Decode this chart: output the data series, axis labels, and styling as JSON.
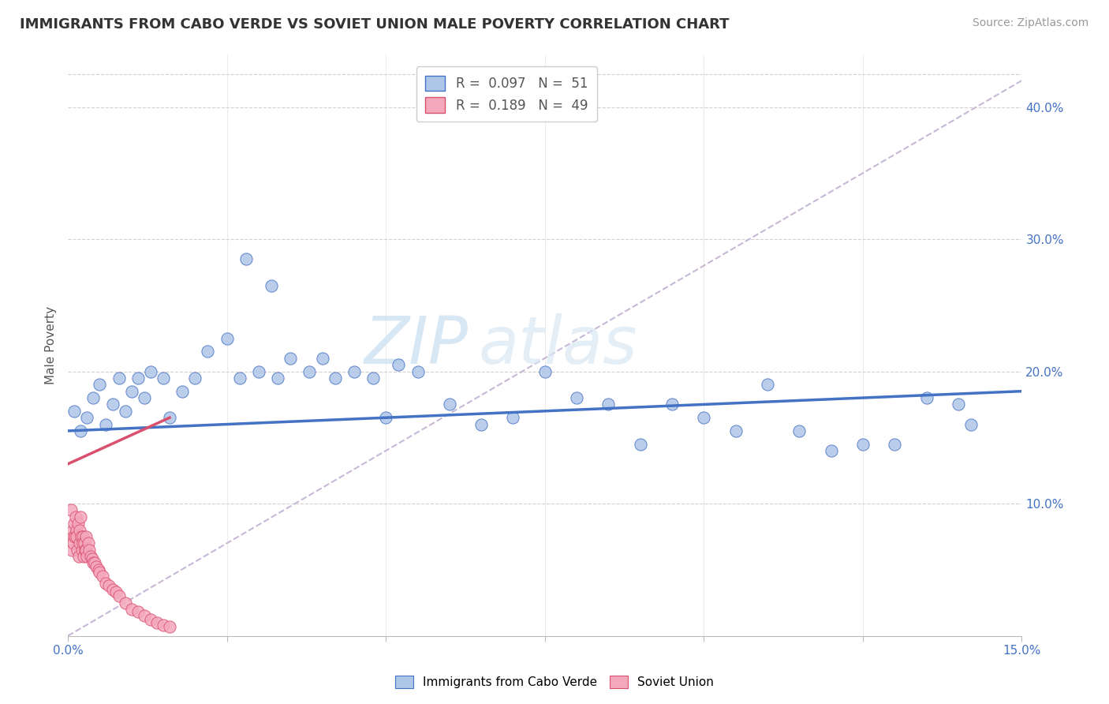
{
  "title": "IMMIGRANTS FROM CABO VERDE VS SOVIET UNION MALE POVERTY CORRELATION CHART",
  "source": "Source: ZipAtlas.com",
  "ylabel": "Male Poverty",
  "xlim": [
    0.0,
    0.15
  ],
  "ylim": [
    0.0,
    0.44
  ],
  "xtick_positions": [
    0.0,
    0.025,
    0.05,
    0.075,
    0.1,
    0.125,
    0.15
  ],
  "xticklabels": [
    "0.0%",
    "",
    "",
    "",
    "",
    "",
    "15.0%"
  ],
  "yticks_right": [
    0.1,
    0.2,
    0.3,
    0.4
  ],
  "yticklabels_right": [
    "10.0%",
    "20.0%",
    "30.0%",
    "40.0%"
  ],
  "cabo_verde_R": 0.097,
  "cabo_verde_N": 51,
  "soviet_union_R": 0.189,
  "soviet_union_N": 49,
  "cabo_verde_color": "#aec6e8",
  "soviet_union_color": "#f4a8bc",
  "cabo_verde_line_color": "#4472c4",
  "soviet_union_line_color": "#d94f6e",
  "legend_label_1": "Immigrants from Cabo Verde",
  "legend_label_2": "Soviet Union",
  "watermark_zip": "ZIP",
  "watermark_atlas": "atlas",
  "diag_line_color": "#c8b8d8",
  "background_color": "#ffffff",
  "grid_color": "#d0d0d0",
  "cabo_verde_x": [
    0.001,
    0.002,
    0.003,
    0.004,
    0.005,
    0.006,
    0.007,
    0.008,
    0.009,
    0.01,
    0.011,
    0.012,
    0.013,
    0.015,
    0.016,
    0.018,
    0.02,
    0.022,
    0.025,
    0.027,
    0.028,
    0.03,
    0.032,
    0.033,
    0.035,
    0.038,
    0.04,
    0.042,
    0.045,
    0.048,
    0.05,
    0.052,
    0.055,
    0.06,
    0.065,
    0.07,
    0.075,
    0.08,
    0.085,
    0.09,
    0.095,
    0.1,
    0.105,
    0.11,
    0.115,
    0.12,
    0.125,
    0.13,
    0.135,
    0.14,
    0.142
  ],
  "cabo_verde_y": [
    0.17,
    0.155,
    0.165,
    0.18,
    0.19,
    0.16,
    0.175,
    0.195,
    0.17,
    0.185,
    0.195,
    0.18,
    0.2,
    0.195,
    0.165,
    0.185,
    0.195,
    0.215,
    0.225,
    0.195,
    0.285,
    0.2,
    0.265,
    0.195,
    0.21,
    0.2,
    0.21,
    0.195,
    0.2,
    0.195,
    0.165,
    0.205,
    0.2,
    0.175,
    0.16,
    0.165,
    0.2,
    0.18,
    0.175,
    0.145,
    0.175,
    0.165,
    0.155,
    0.19,
    0.155,
    0.14,
    0.145,
    0.145,
    0.18,
    0.175,
    0.16
  ],
  "soviet_x": [
    0.0005,
    0.0006,
    0.0007,
    0.0008,
    0.0009,
    0.001,
    0.0011,
    0.0012,
    0.0013,
    0.0014,
    0.0015,
    0.0016,
    0.0017,
    0.0018,
    0.0019,
    0.002,
    0.0021,
    0.0022,
    0.0023,
    0.0024,
    0.0025,
    0.0026,
    0.0027,
    0.0028,
    0.0029,
    0.003,
    0.0032,
    0.0034,
    0.0036,
    0.0038,
    0.004,
    0.0042,
    0.0045,
    0.0048,
    0.005,
    0.0055,
    0.006,
    0.0065,
    0.007,
    0.0075,
    0.008,
    0.009,
    0.01,
    0.011,
    0.012,
    0.013,
    0.014,
    0.015,
    0.016
  ],
  "soviet_y": [
    0.095,
    0.065,
    0.08,
    0.075,
    0.07,
    0.085,
    0.075,
    0.09,
    0.08,
    0.075,
    0.065,
    0.085,
    0.06,
    0.08,
    0.07,
    0.09,
    0.075,
    0.065,
    0.075,
    0.07,
    0.06,
    0.07,
    0.065,
    0.075,
    0.065,
    0.06,
    0.07,
    0.065,
    0.06,
    0.058,
    0.055,
    0.055,
    0.052,
    0.05,
    0.048,
    0.045,
    0.04,
    0.038,
    0.035,
    0.033,
    0.03,
    0.025,
    0.02,
    0.018,
    0.015,
    0.012,
    0.01,
    0.008,
    0.007
  ],
  "cabo_verde_trend_x": [
    0.0,
    0.15
  ],
  "cabo_verde_trend_y": [
    0.155,
    0.185
  ],
  "soviet_trend_x": [
    0.0,
    0.016
  ],
  "soviet_trend_y": [
    0.13,
    0.165
  ]
}
